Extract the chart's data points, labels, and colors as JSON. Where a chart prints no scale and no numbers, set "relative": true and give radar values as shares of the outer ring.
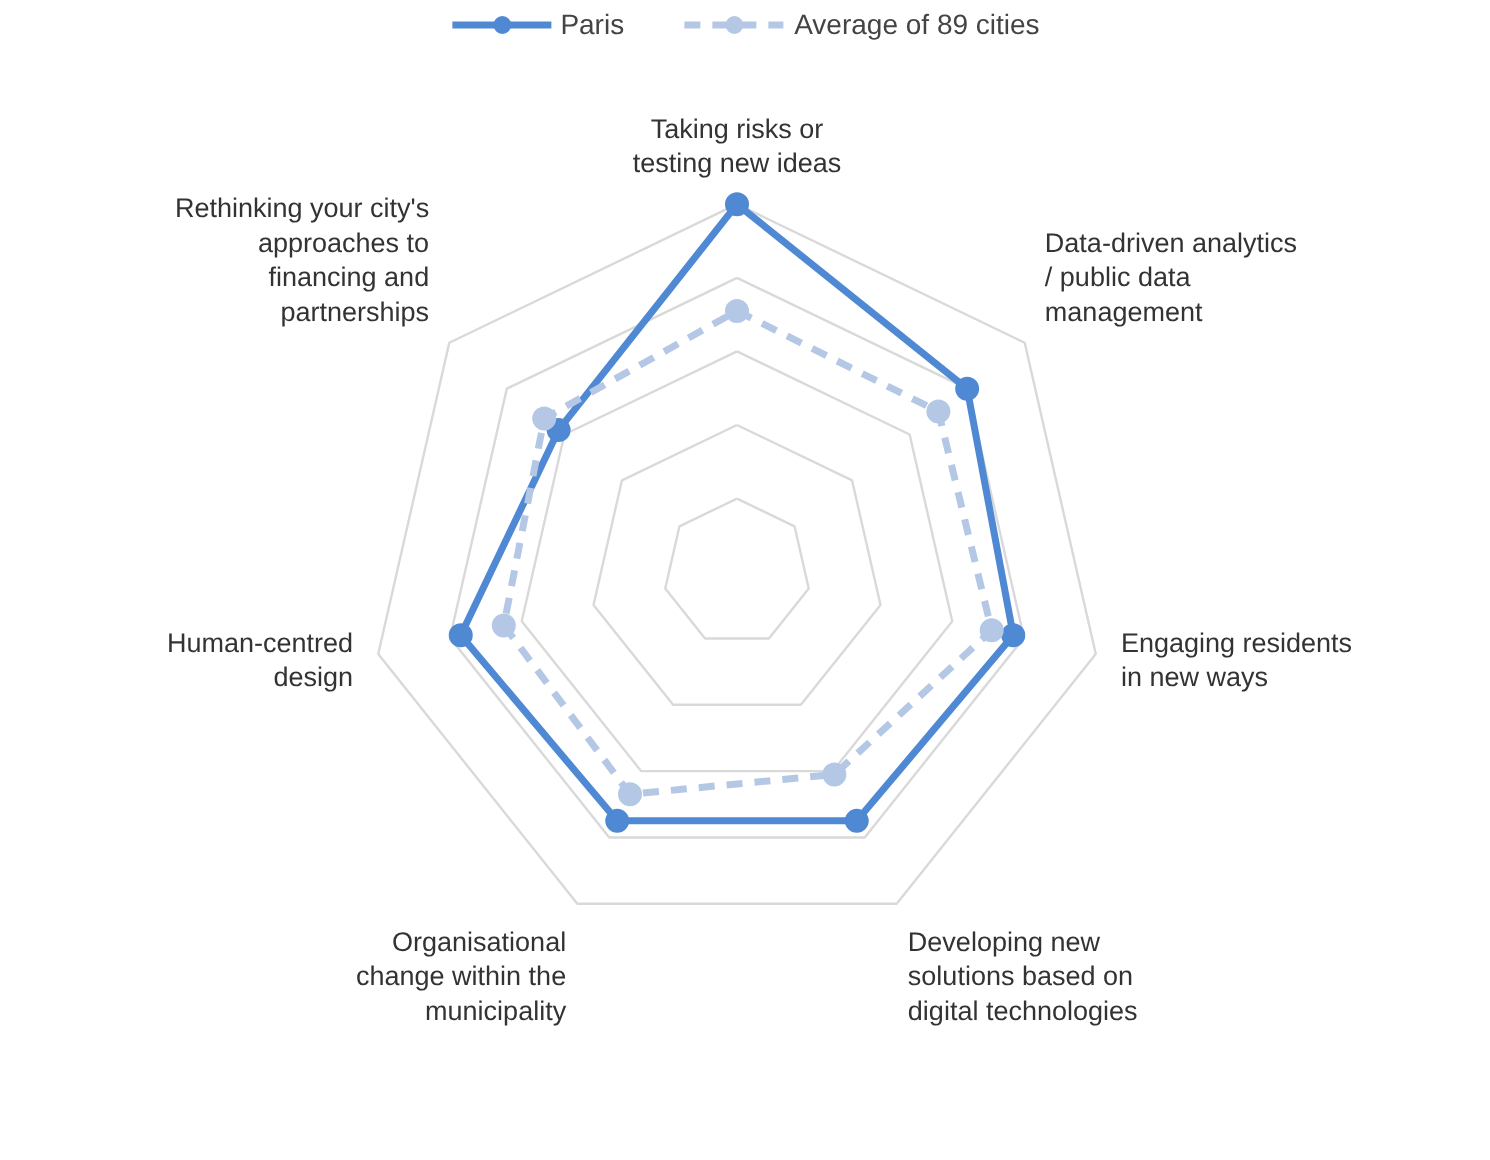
{
  "chart_data": {
    "type": "radar",
    "relative": true,
    "legend": "top",
    "marker": "circle",
    "grid": true,
    "categories": [
      "Taking risks or\ntesting new ideas",
      "Data-driven analytics\n/ public data\nmanagement",
      "Engaging residents\nin new ways",
      "Developing new\nsolutions based on\ndigital technologies",
      "Organisational\nchange within the\nmunicipality",
      "Human-centred\ndesign",
      "Rethinking your city's\napproaches to\nfinancing and\npartnerships"
    ],
    "series": [
      {
        "name": "Paris",
        "color": "#4f88d3",
        "line_style": "solid",
        "values": [
          1.0,
          0.8,
          0.77,
          0.75,
          0.75,
          0.77,
          0.62
        ]
      },
      {
        "name": "Average of 89 cities",
        "color": "#b4c8e5",
        "line_style": "dashed",
        "values": [
          0.71,
          0.7,
          0.71,
          0.61,
          0.67,
          0.65,
          0.67
        ]
      }
    ]
  }
}
